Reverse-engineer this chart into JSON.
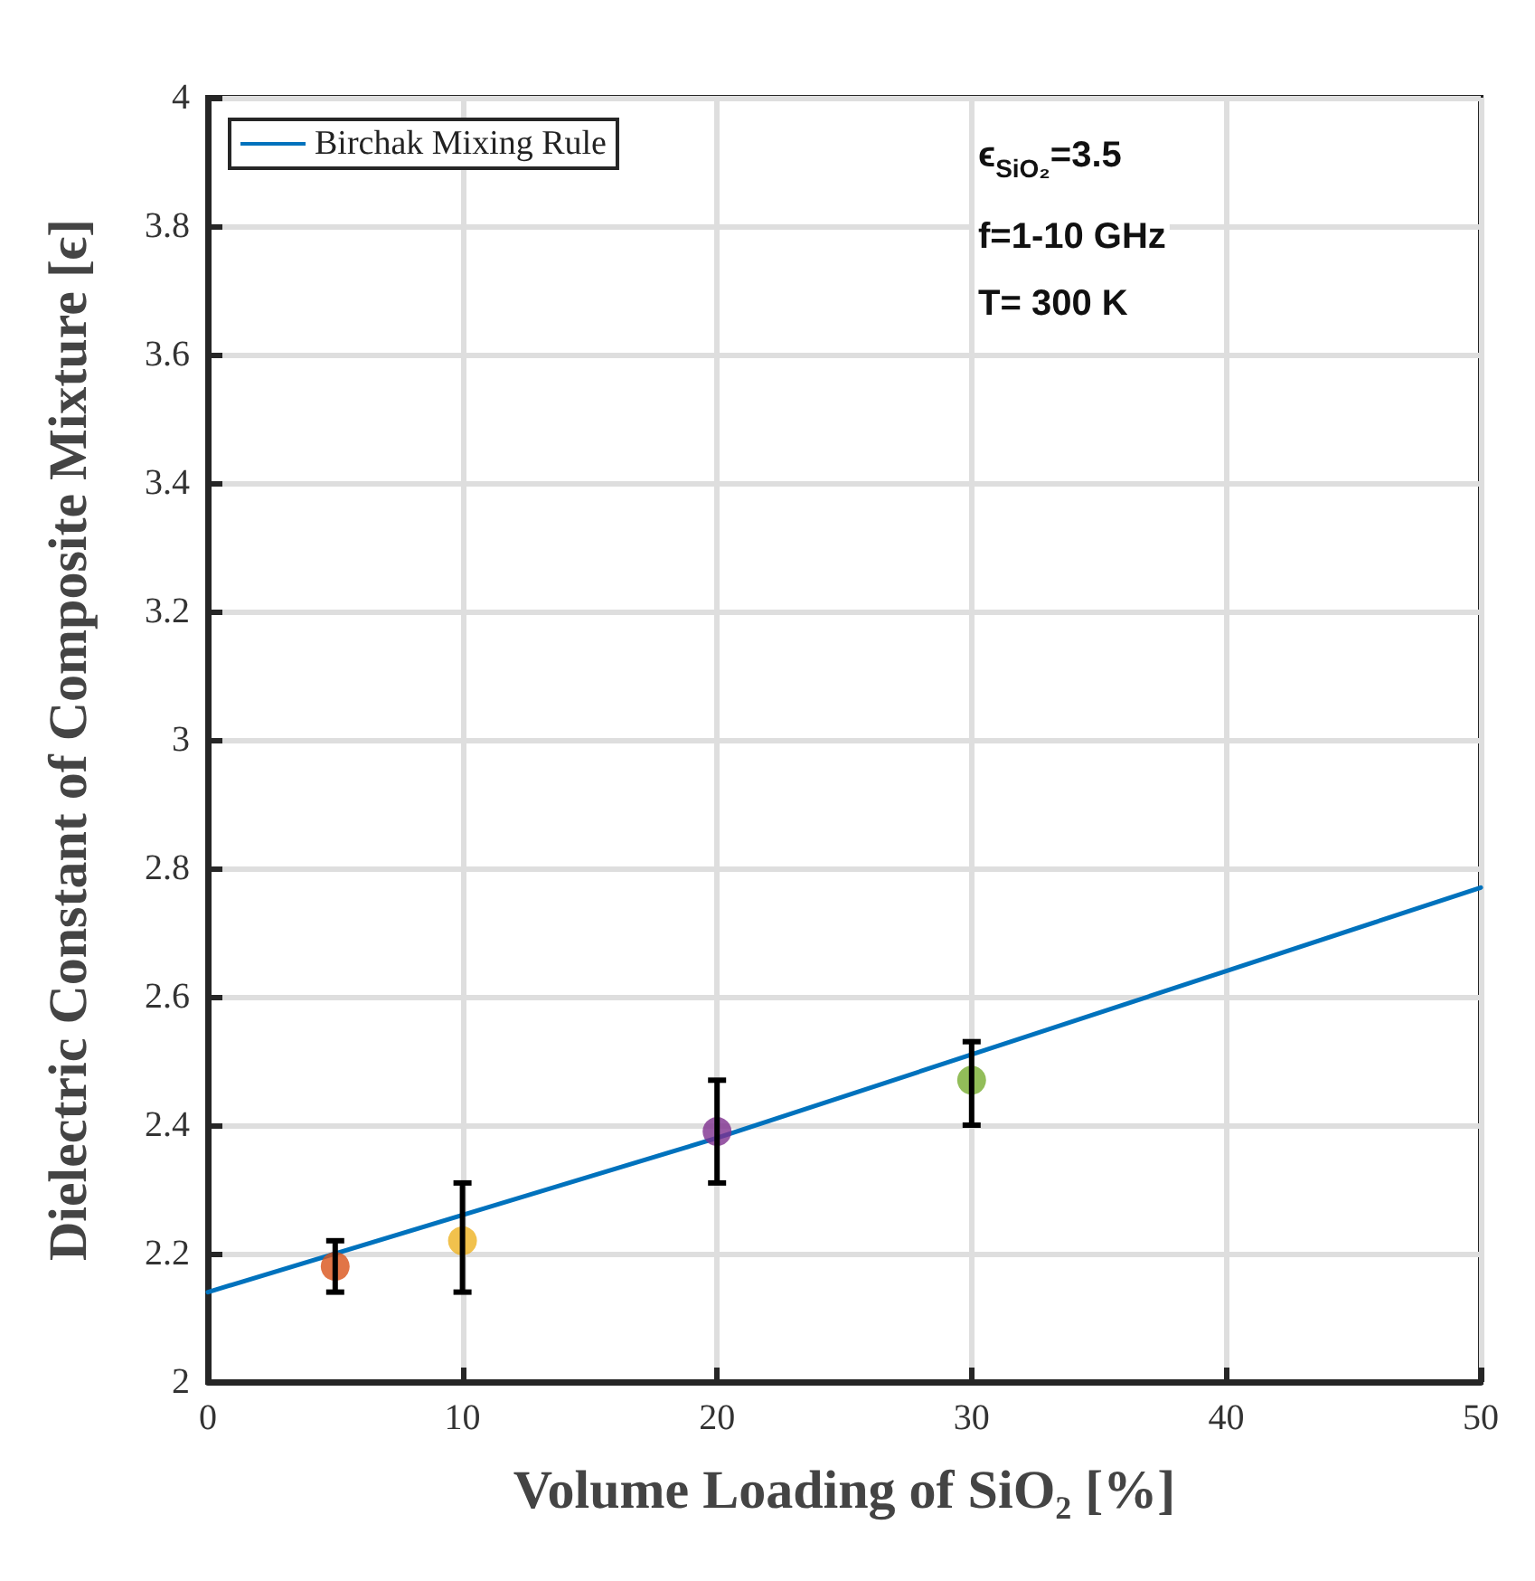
{
  "chart_data": {
    "type": "scatter",
    "xlabel": "Volume Loading of SiO₂ [%]",
    "ylabel": "Dielectric Constant of Composite Mixture [ϵ]",
    "xlim": [
      0,
      50
    ],
    "xticks": [
      0,
      10,
      20,
      30,
      40,
      50
    ],
    "ylim": [
      2,
      4
    ],
    "yticks": [
      2,
      2.2,
      2.4,
      2.6,
      2.8,
      3,
      3.2,
      3.4,
      3.6,
      3.8,
      4
    ],
    "grid": true,
    "legend": "top left",
    "annotations": [
      "ϵ$_{SiO₂}$=3.5",
      "f=1-10 GHz",
      "T= 300 K"
    ],
    "series": [
      {
        "name": "Birchak Mixing Rule",
        "type": "line",
        "color": "#0072bd",
        "marker": "none",
        "line_style": "solid",
        "x": [
          0,
          10,
          20,
          30,
          40,
          50
        ],
        "values": [
          2.14,
          2.26,
          2.38,
          2.51,
          2.64,
          2.77
        ]
      },
      {
        "color": "#d95319",
        "marker": "circle",
        "x": [
          5
        ],
        "values": [
          2.18
        ],
        "errors": [
          [
            2.14,
            2.22
          ]
        ]
      },
      {
        "color": "#edb120",
        "marker": "circle",
        "x": [
          10
        ],
        "values": [
          2.22
        ],
        "errors": [
          [
            2.14,
            2.31
          ]
        ]
      },
      {
        "color": "#7e2f8e",
        "marker": "circle",
        "x": [
          20
        ],
        "values": [
          2.39
        ],
        "errors": [
          [
            2.31,
            2.47
          ]
        ]
      },
      {
        "color": "#77ac30",
        "marker": "circle",
        "x": [
          30
        ],
        "values": [
          2.47
        ],
        "errors": [
          [
            2.4,
            2.53
          ]
        ]
      }
    ]
  }
}
